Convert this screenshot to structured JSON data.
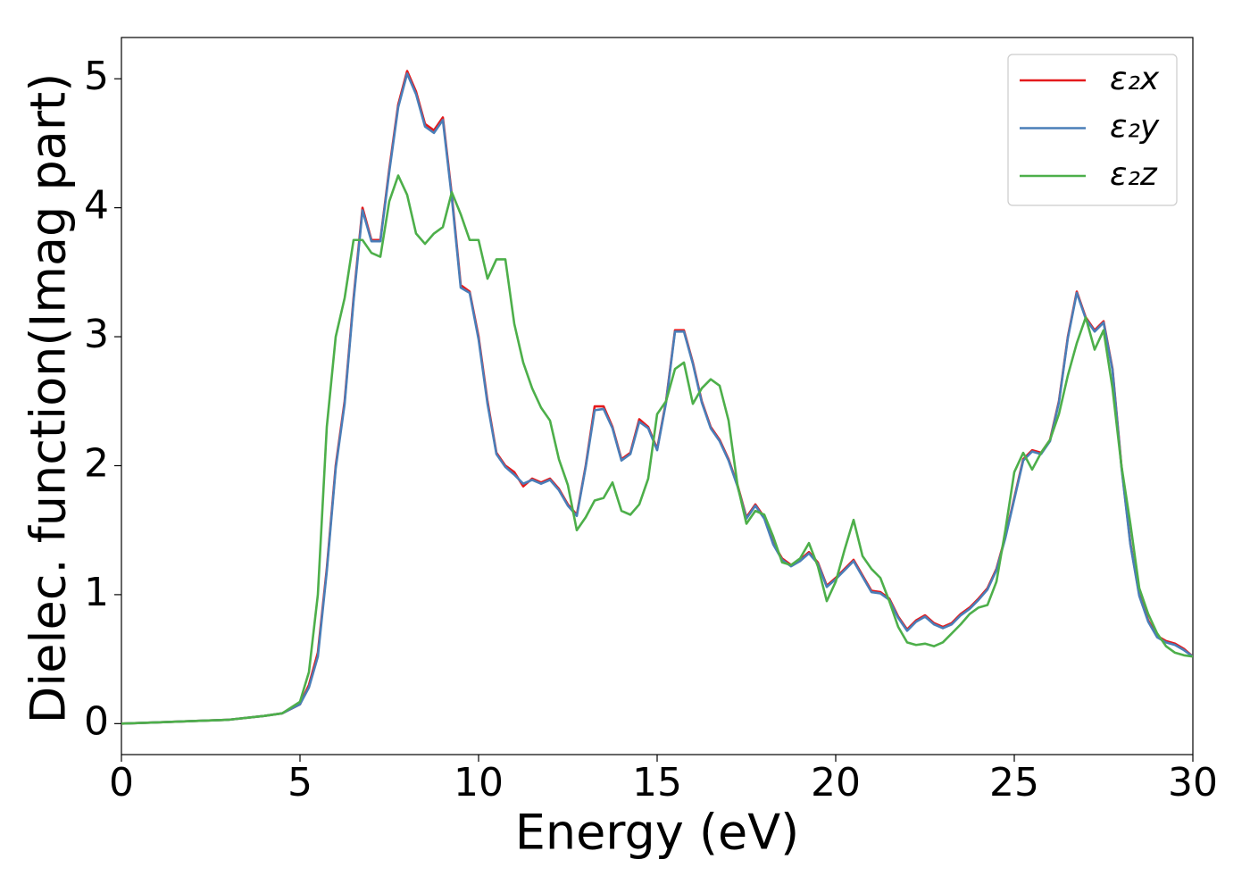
{
  "chart_data": {
    "type": "line",
    "xlabel": "Energy (eV)",
    "ylabel": "Dielec. function(Imag part)",
    "x": [
      0,
      1,
      2,
      3,
      4,
      4.5,
      5,
      5.25,
      5.5,
      5.75,
      6,
      6.25,
      6.5,
      6.75,
      7,
      7.25,
      7.5,
      7.75,
      8,
      8.25,
      8.5,
      8.75,
      9,
      9.25,
      9.5,
      9.75,
      10,
      10.25,
      10.5,
      10.75,
      11,
      11.25,
      11.5,
      11.75,
      12,
      12.25,
      12.5,
      12.75,
      13,
      13.25,
      13.5,
      13.75,
      14,
      14.25,
      14.5,
      14.75,
      15,
      15.25,
      15.5,
      15.75,
      16,
      16.25,
      16.5,
      16.75,
      17,
      17.25,
      17.5,
      17.75,
      18,
      18.25,
      18.5,
      18.75,
      19,
      19.25,
      19.5,
      19.75,
      20,
      20.25,
      20.5,
      20.75,
      21,
      21.25,
      21.5,
      21.75,
      22,
      22.25,
      22.5,
      22.75,
      23,
      23.25,
      23.5,
      23.75,
      24,
      24.25,
      24.5,
      24.75,
      25,
      25.25,
      25.5,
      25.75,
      26,
      26.25,
      26.5,
      26.75,
      27,
      27.25,
      27.5,
      27.75,
      28,
      28.25,
      28.5,
      28.75,
      29,
      29.25,
      29.5,
      29.75,
      30
    ],
    "series": [
      {
        "name": "ε₂x",
        "color": "#e41a1c",
        "values": [
          0,
          0.01,
          0.02,
          0.03,
          0.06,
          0.08,
          0.15,
          0.3,
          0.55,
          1.2,
          2.0,
          2.5,
          3.3,
          4.0,
          3.75,
          3.75,
          4.3,
          4.8,
          5.06,
          4.9,
          4.65,
          4.6,
          4.7,
          4.1,
          3.4,
          3.35,
          3.0,
          2.5,
          2.1,
          2.0,
          1.95,
          1.84,
          1.9,
          1.87,
          1.9,
          1.82,
          1.7,
          1.62,
          2.0,
          2.46,
          2.46,
          2.3,
          2.05,
          2.1,
          2.36,
          2.3,
          2.13,
          2.5,
          3.05,
          3.05,
          2.8,
          2.5,
          2.3,
          2.2,
          2.05,
          1.85,
          1.6,
          1.7,
          1.6,
          1.4,
          1.28,
          1.23,
          1.27,
          1.33,
          1.25,
          1.07,
          1.13,
          1.2,
          1.27,
          1.15,
          1.03,
          1.02,
          0.97,
          0.83,
          0.73,
          0.8,
          0.84,
          0.78,
          0.75,
          0.78,
          0.85,
          0.9,
          0.97,
          1.05,
          1.2,
          1.45,
          1.75,
          2.05,
          2.12,
          2.1,
          2.2,
          2.5,
          3.0,
          3.35,
          3.15,
          3.05,
          3.12,
          2.75,
          2.0,
          1.4,
          1.0,
          0.8,
          0.68,
          0.64,
          0.62,
          0.58,
          0.52
        ]
      },
      {
        "name": "ε₂y",
        "color": "#4a7eb8",
        "values": [
          0,
          0.01,
          0.02,
          0.03,
          0.06,
          0.08,
          0.15,
          0.28,
          0.52,
          1.18,
          1.98,
          2.48,
          3.28,
          3.98,
          3.74,
          3.74,
          4.28,
          4.78,
          5.04,
          4.88,
          4.63,
          4.58,
          4.68,
          4.08,
          3.38,
          3.34,
          2.98,
          2.48,
          2.09,
          1.99,
          1.93,
          1.86,
          1.89,
          1.86,
          1.89,
          1.81,
          1.69,
          1.61,
          1.99,
          2.43,
          2.44,
          2.29,
          2.04,
          2.09,
          2.34,
          2.29,
          2.12,
          2.49,
          3.04,
          3.04,
          2.79,
          2.49,
          2.29,
          2.19,
          2.04,
          1.84,
          1.59,
          1.69,
          1.59,
          1.39,
          1.27,
          1.22,
          1.26,
          1.32,
          1.24,
          1.06,
          1.12,
          1.19,
          1.26,
          1.14,
          1.02,
          1.01,
          0.96,
          0.82,
          0.72,
          0.79,
          0.83,
          0.77,
          0.74,
          0.77,
          0.84,
          0.89,
          0.96,
          1.04,
          1.19,
          1.44,
          1.74,
          2.04,
          2.11,
          2.09,
          2.19,
          2.49,
          2.99,
          3.34,
          3.14,
          3.04,
          3.11,
          2.74,
          1.99,
          1.39,
          0.99,
          0.79,
          0.67,
          0.63,
          0.61,
          0.57,
          0.52
        ]
      },
      {
        "name": "ε₂z",
        "color": "#4daf4a",
        "values": [
          0,
          0.01,
          0.02,
          0.03,
          0.06,
          0.08,
          0.17,
          0.4,
          1.0,
          2.3,
          3.0,
          3.3,
          3.75,
          3.75,
          3.65,
          3.62,
          4.05,
          4.25,
          4.1,
          3.8,
          3.72,
          3.8,
          3.85,
          4.12,
          3.95,
          3.75,
          3.75,
          3.45,
          3.6,
          3.6,
          3.1,
          2.8,
          2.6,
          2.45,
          2.35,
          2.05,
          1.85,
          1.5,
          1.6,
          1.73,
          1.75,
          1.87,
          1.65,
          1.62,
          1.7,
          1.9,
          2.4,
          2.5,
          2.75,
          2.8,
          2.48,
          2.6,
          2.67,
          2.62,
          2.35,
          1.85,
          1.55,
          1.65,
          1.62,
          1.45,
          1.25,
          1.23,
          1.28,
          1.4,
          1.22,
          0.95,
          1.1,
          1.35,
          1.58,
          1.3,
          1.2,
          1.13,
          0.95,
          0.75,
          0.63,
          0.61,
          0.62,
          0.6,
          0.63,
          0.7,
          0.77,
          0.85,
          0.9,
          0.92,
          1.1,
          1.5,
          1.95,
          2.1,
          1.97,
          2.1,
          2.2,
          2.4,
          2.7,
          2.95,
          3.15,
          2.9,
          3.05,
          2.6,
          2.0,
          1.55,
          1.05,
          0.85,
          0.7,
          0.6,
          0.55,
          0.53,
          0.52
        ]
      }
    ],
    "xlim": [
      0,
      30
    ],
    "xticks": [
      0,
      5,
      10,
      15,
      20,
      25,
      30
    ],
    "ylim": [
      -0.24,
      5.32
    ],
    "yticks": [
      0,
      1,
      2,
      3,
      4,
      5
    ],
    "legend": "upper right"
  }
}
